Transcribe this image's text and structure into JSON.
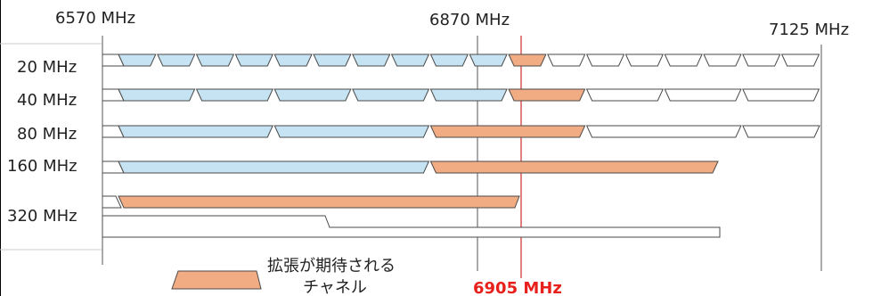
{
  "frequencies": {
    "start": {
      "value": 6570,
      "label": "6570 MHz"
    },
    "mid": {
      "value": 6870,
      "label": "6870 MHz"
    },
    "end": {
      "value": 7125,
      "label": "7125 MHz"
    },
    "marker": {
      "value": 6905,
      "label": "6905 MHz"
    }
  },
  "rows": [
    {
      "label": "20 MHz",
      "width_mhz": 20
    },
    {
      "label": "40 MHz",
      "width_mhz": 40
    },
    {
      "label": "80 MHz",
      "width_mhz": 80
    },
    {
      "label": "160 MHz",
      "width_mhz": 160
    },
    {
      "label": "320 MHz",
      "width_mhz": 320
    }
  ],
  "legend": {
    "line1": "拡張が期待される",
    "line2": "チャネル"
  },
  "colors": {
    "existing_fill": "#c5e3f2",
    "expected_fill": "#f2ac84",
    "outline": "#4a4a4a",
    "marker": "#c00000",
    "marker_text": "#e8201c",
    "text": "#222222"
  }
}
